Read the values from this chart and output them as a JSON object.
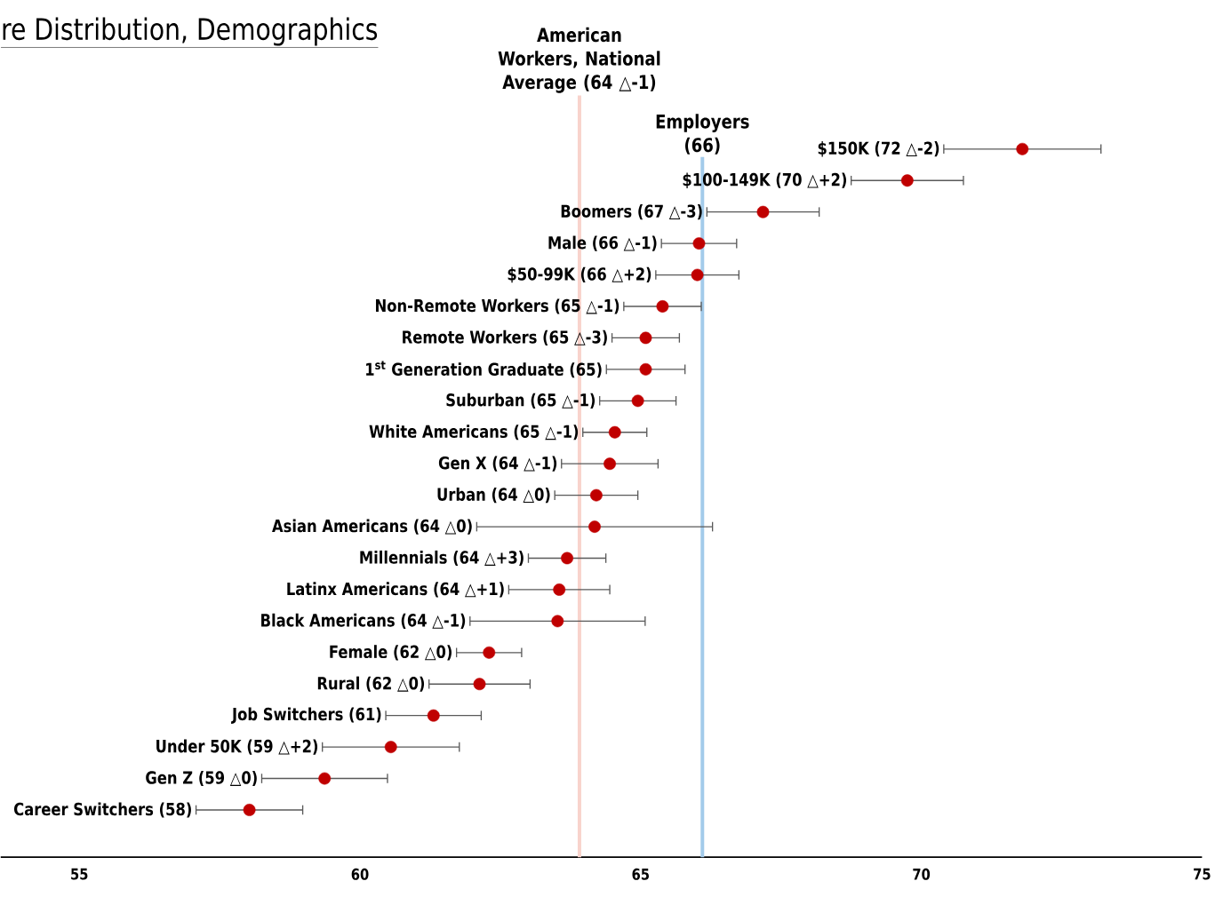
{
  "chart_data": {
    "type": "scatter",
    "orientation": "horizontal",
    "title": "re Distribution, Demographics",
    "color": "#c00000",
    "marker": "circle",
    "categories": [
      "$150K (72 △-2)",
      "$100-149K (70 △+2)",
      "Boomers (67 △-3)",
      "Male (66 △-1)",
      "$50-99K (66 △+2)",
      "Non-Remote Workers (65 △-1)",
      "Remote Workers (65 △-3)",
      "1$^{st}$ Generation Graduate (65)",
      "Suburban (65 △-1)",
      "White Americans (65 △-1)",
      "Gen X (64 △-1)",
      "Urban (64 △0)",
      "Asian Americans (64 △0)",
      "Millennials (64 △+3)",
      "Latinx Americans (64 △+1)",
      "Black Americans (64 △-1)",
      "Female (62 △0)",
      "Rural (62 △0)",
      "Job Switchers (61)",
      "Under 50K (59 △+2)",
      "Gen Z (59 △0)",
      "Career Switchers (58)"
    ],
    "values": [
      71.8,
      69.75,
      67.18,
      66.04,
      66.01,
      65.39,
      65.09,
      65.09,
      64.95,
      64.54,
      64.45,
      64.21,
      64.18,
      63.69,
      63.55,
      63.52,
      62.3,
      62.13,
      61.31,
      60.55,
      59.37,
      58.03
    ],
    "errors": [
      1.4,
      1.0,
      1.0,
      0.67,
      0.74,
      0.69,
      0.6,
      0.7,
      0.68,
      0.57,
      0.86,
      0.74,
      2.1,
      0.69,
      0.9,
      1.56,
      0.58,
      0.9,
      0.85,
      1.22,
      1.12,
      0.95
    ],
    "xlim": [
      53.6,
      75
    ],
    "xticks": [
      55,
      60,
      65,
      70,
      75
    ],
    "ref_lines": [
      {
        "axis": "x",
        "value": 63.91,
        "label": "American Workers, National Average (64 △-1)",
        "color": "#f8d3cc"
      },
      {
        "axis": "x",
        "value": 66.1,
        "label": "Employers (66)",
        "color": "#a3cbea"
      }
    ]
  }
}
